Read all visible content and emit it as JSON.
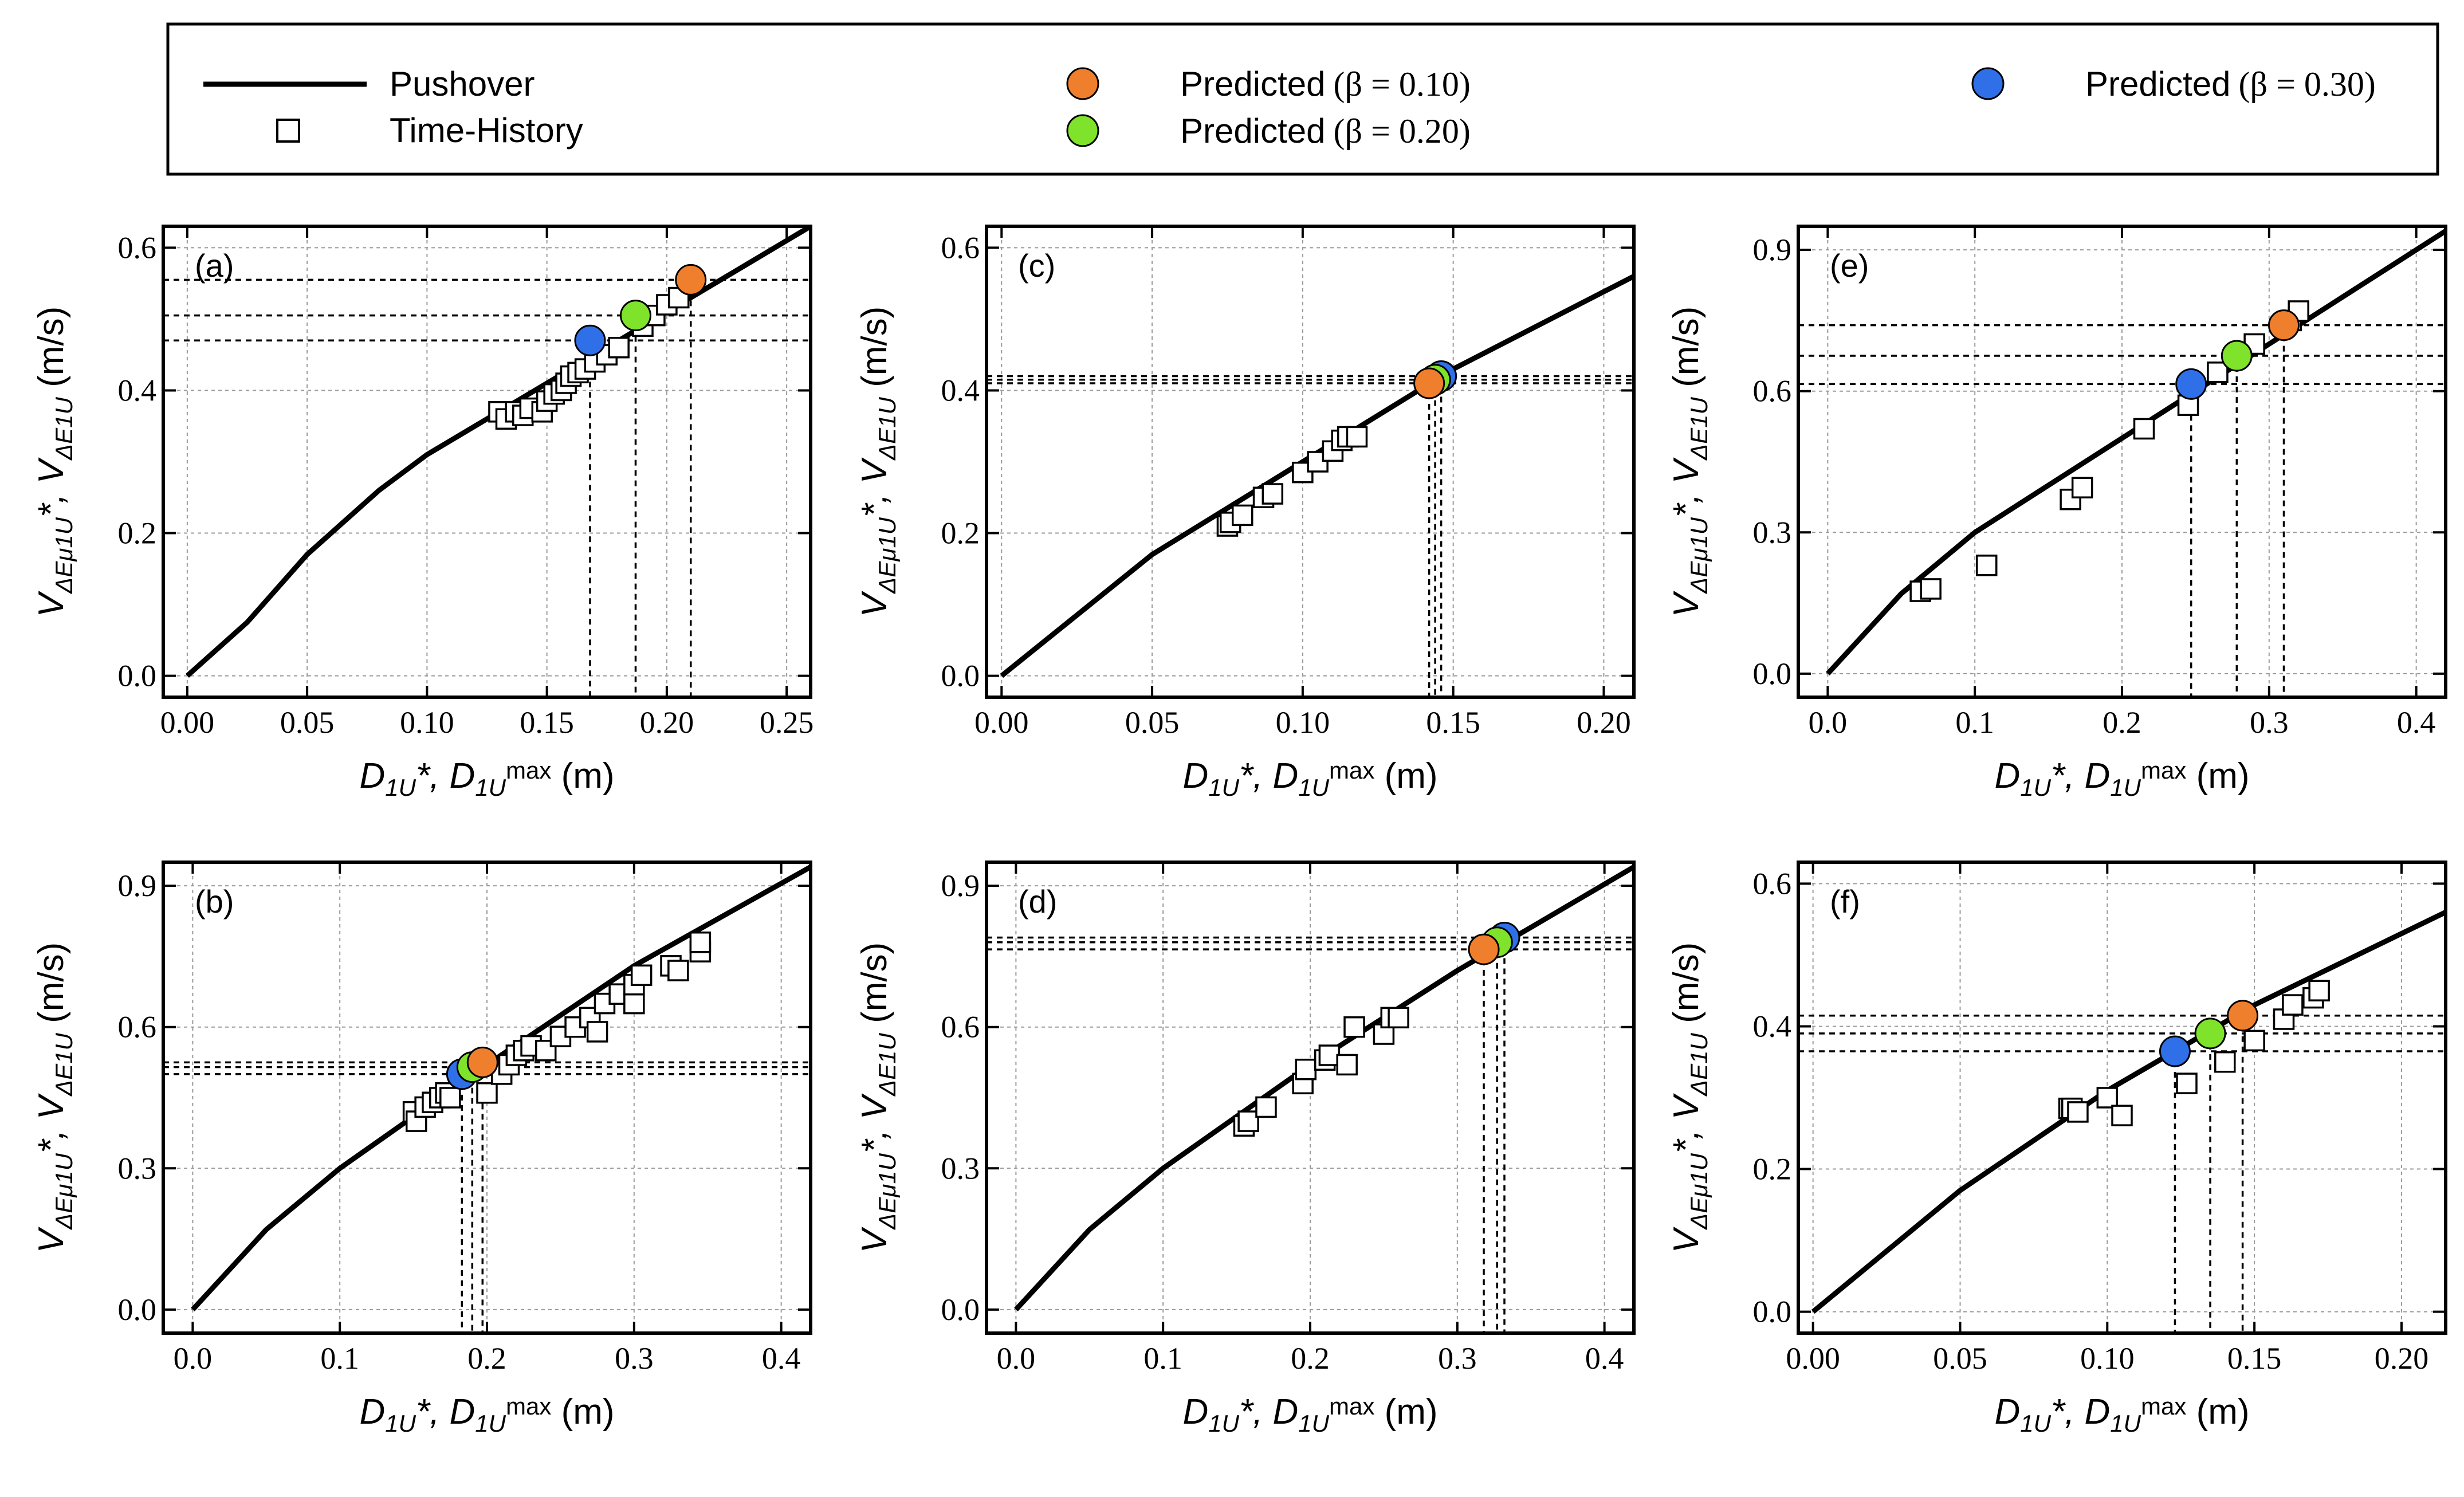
{
  "legend": {
    "pushover_label": "Pushover",
    "time_history_label": "Time-History",
    "predicted_010_text": "Predicted",
    "predicted_010_param": "(β = 0.10)",
    "predicted_020_text": "Predicted",
    "predicted_020_param": "(β = 0.20)",
    "predicted_030_text": "Predicted",
    "predicted_030_param": "(β = 0.30)"
  },
  "colors": {
    "beta_010": "#F07F2D",
    "beta_020": "#7FE22B",
    "beta_030": "#2F6FE8",
    "curve": "#000000",
    "grid": "#9a9a9a"
  },
  "axis_labels": {
    "x_main": "D",
    "x_sub1": "1U",
    "x_sep": "*, D",
    "x_sub2": "1U",
    "x_sub2_max": "max",
    "x_unit": "(m)",
    "y_main": "V",
    "y_sub1": "ΔEμ1U",
    "y_sep": "*, V",
    "y_sub2": "ΔE1U",
    "y_unit": "(m/s)"
  },
  "chart_data": [
    {
      "panel": "(a)",
      "type": "scatter",
      "xlabel": "D1U*, D1U*max (m)",
      "ylabel": "VΔEμ1U*, VΔE1U* (m/s)",
      "xlim": [
        -0.01,
        0.26
      ],
      "ylim": [
        -0.03,
        0.63
      ],
      "xticks": [
        0.0,
        0.05,
        0.1,
        0.15,
        0.2,
        0.25
      ],
      "xticklabels": [
        "0.00",
        "0.05",
        "0.10",
        "0.15",
        "0.20",
        "0.25"
      ],
      "yticks": [
        0.0,
        0.2,
        0.4,
        0.6
      ],
      "yticklabels": [
        "0.0",
        "0.2",
        "0.4",
        "0.6"
      ],
      "pushover": [
        [
          0.0,
          0.0
        ],
        [
          0.025,
          0.075
        ],
        [
          0.05,
          0.17
        ],
        [
          0.08,
          0.26
        ],
        [
          0.1,
          0.31
        ],
        [
          0.15,
          0.41
        ],
        [
          0.2,
          0.51
        ],
        [
          0.26,
          0.63
        ]
      ],
      "time_history": [
        [
          0.13,
          0.37
        ],
        [
          0.133,
          0.36
        ],
        [
          0.137,
          0.37
        ],
        [
          0.14,
          0.365
        ],
        [
          0.143,
          0.375
        ],
        [
          0.148,
          0.37
        ],
        [
          0.15,
          0.385
        ],
        [
          0.153,
          0.395
        ],
        [
          0.156,
          0.4
        ],
        [
          0.158,
          0.41
        ],
        [
          0.16,
          0.42
        ],
        [
          0.163,
          0.425
        ],
        [
          0.166,
          0.43
        ],
        [
          0.17,
          0.44
        ],
        [
          0.175,
          0.45
        ],
        [
          0.18,
          0.46
        ],
        [
          0.19,
          0.49
        ],
        [
          0.195,
          0.505
        ],
        [
          0.2,
          0.52
        ],
        [
          0.205,
          0.53
        ]
      ],
      "predicted": [
        {
          "beta": "0.10",
          "x": 0.21,
          "y": 0.555
        },
        {
          "beta": "0.20",
          "x": 0.187,
          "y": 0.505
        },
        {
          "beta": "0.30",
          "x": 0.168,
          "y": 0.47
        }
      ]
    },
    {
      "panel": "(b)",
      "type": "scatter",
      "xlabel": "D1U*, D1U*max (m)",
      "ylabel": "VΔEμ1U*, VΔE1U* (m/s)",
      "xlim": [
        -0.02,
        0.42
      ],
      "ylim": [
        -0.05,
        0.95
      ],
      "xticks": [
        0.0,
        0.1,
        0.2,
        0.3,
        0.4
      ],
      "xticklabels": [
        "0.0",
        "0.1",
        "0.2",
        "0.3",
        "0.4"
      ],
      "yticks": [
        0.0,
        0.3,
        0.6,
        0.9
      ],
      "yticklabels": [
        "0.0",
        "0.3",
        "0.6",
        "0.9"
      ],
      "pushover": [
        [
          0.0,
          0.0
        ],
        [
          0.05,
          0.17
        ],
        [
          0.1,
          0.3
        ],
        [
          0.2,
          0.52
        ],
        [
          0.3,
          0.73
        ],
        [
          0.42,
          0.94
        ]
      ],
      "time_history": [
        [
          0.15,
          0.42
        ],
        [
          0.152,
          0.4
        ],
        [
          0.158,
          0.43
        ],
        [
          0.163,
          0.44
        ],
        [
          0.168,
          0.45
        ],
        [
          0.172,
          0.46
        ],
        [
          0.175,
          0.45
        ],
        [
          0.2,
          0.46
        ],
        [
          0.21,
          0.5
        ],
        [
          0.215,
          0.52
        ],
        [
          0.22,
          0.54
        ],
        [
          0.225,
          0.55
        ],
        [
          0.23,
          0.56
        ],
        [
          0.24,
          0.55
        ],
        [
          0.25,
          0.58
        ],
        [
          0.26,
          0.6
        ],
        [
          0.27,
          0.62
        ],
        [
          0.275,
          0.59
        ],
        [
          0.28,
          0.65
        ],
        [
          0.29,
          0.67
        ],
        [
          0.3,
          0.65
        ],
        [
          0.3,
          0.69
        ],
        [
          0.305,
          0.71
        ],
        [
          0.325,
          0.73
        ],
        [
          0.33,
          0.72
        ],
        [
          0.345,
          0.76
        ],
        [
          0.345,
          0.78
        ]
      ],
      "predicted": [
        {
          "beta": "0.10",
          "x": 0.197,
          "y": 0.525
        },
        {
          "beta": "0.20",
          "x": 0.19,
          "y": 0.515
        },
        {
          "beta": "0.30",
          "x": 0.183,
          "y": 0.5
        }
      ]
    },
    {
      "panel": "(c)",
      "type": "scatter",
      "xlabel": "D1U*, D1U*max (m)",
      "ylabel": "VΔEμ1U*, VΔE1U* (m/s)",
      "xlim": [
        -0.005,
        0.21
      ],
      "ylim": [
        -0.03,
        0.63
      ],
      "xticks": [
        0.0,
        0.05,
        0.1,
        0.15,
        0.2
      ],
      "xticklabels": [
        "0.00",
        "0.05",
        "0.10",
        "0.15",
        "0.20"
      ],
      "yticks": [
        0.0,
        0.2,
        0.4,
        0.6
      ],
      "yticklabels": [
        "0.0",
        "0.2",
        "0.4",
        "0.6"
      ],
      "pushover": [
        [
          0.0,
          0.0
        ],
        [
          0.05,
          0.17
        ],
        [
          0.1,
          0.3
        ],
        [
          0.15,
          0.43
        ],
        [
          0.21,
          0.56
        ]
      ],
      "time_history": [
        [
          0.075,
          0.21
        ],
        [
          0.076,
          0.215
        ],
        [
          0.08,
          0.225
        ],
        [
          0.087,
          0.25
        ],
        [
          0.09,
          0.255
        ],
        [
          0.1,
          0.285
        ],
        [
          0.105,
          0.3
        ],
        [
          0.11,
          0.315
        ],
        [
          0.113,
          0.33
        ],
        [
          0.115,
          0.335
        ],
        [
          0.118,
          0.335
        ]
      ],
      "predicted": [
        {
          "beta": "0.10",
          "x": 0.142,
          "y": 0.41
        },
        {
          "beta": "0.20",
          "x": 0.144,
          "y": 0.415
        },
        {
          "beta": "0.30",
          "x": 0.146,
          "y": 0.42
        }
      ]
    },
    {
      "panel": "(d)",
      "type": "scatter",
      "xlabel": "D1U*, D1U*max (m)",
      "ylabel": "VΔEμ1U*, VΔE1U* (m/s)",
      "xlim": [
        -0.02,
        0.42
      ],
      "ylim": [
        -0.05,
        0.95
      ],
      "xticks": [
        0.0,
        0.1,
        0.2,
        0.3,
        0.4
      ],
      "xticklabels": [
        "0.0",
        "0.1",
        "0.2",
        "0.3",
        "0.4"
      ],
      "yticks": [
        0.0,
        0.3,
        0.6,
        0.9
      ],
      "yticklabels": [
        "0.0",
        "0.3",
        "0.6",
        "0.9"
      ],
      "pushover": [
        [
          0.0,
          0.0
        ],
        [
          0.05,
          0.17
        ],
        [
          0.1,
          0.3
        ],
        [
          0.2,
          0.52
        ],
        [
          0.3,
          0.72
        ],
        [
          0.42,
          0.94
        ]
      ],
      "time_history": [
        [
          0.155,
          0.39
        ],
        [
          0.158,
          0.4
        ],
        [
          0.17,
          0.43
        ],
        [
          0.195,
          0.48
        ],
        [
          0.197,
          0.51
        ],
        [
          0.21,
          0.53
        ],
        [
          0.213,
          0.54
        ],
        [
          0.225,
          0.52
        ],
        [
          0.23,
          0.6
        ],
        [
          0.25,
          0.585
        ],
        [
          0.255,
          0.62
        ],
        [
          0.26,
          0.62
        ]
      ],
      "predicted": [
        {
          "beta": "0.10",
          "x": 0.318,
          "y": 0.765
        },
        {
          "beta": "0.20",
          "x": 0.327,
          "y": 0.78
        },
        {
          "beta": "0.30",
          "x": 0.332,
          "y": 0.79
        }
      ]
    },
    {
      "panel": "(e)",
      "type": "scatter",
      "xlabel": "D1U*, D1U*max (m)",
      "ylabel": "VΔEμ1U*, VΔE1U* (m/s)",
      "xlim": [
        -0.02,
        0.42
      ],
      "ylim": [
        -0.05,
        0.95
      ],
      "xticks": [
        0.0,
        0.1,
        0.2,
        0.3,
        0.4
      ],
      "xticklabels": [
        "0.0",
        "0.1",
        "0.2",
        "0.3",
        "0.4"
      ],
      "yticks": [
        0.0,
        0.3,
        0.6,
        0.9
      ],
      "yticklabels": [
        "0.0",
        "0.3",
        "0.6",
        "0.9"
      ],
      "pushover": [
        [
          0.0,
          0.0
        ],
        [
          0.05,
          0.17
        ],
        [
          0.1,
          0.3
        ],
        [
          0.2,
          0.5
        ],
        [
          0.3,
          0.7
        ],
        [
          0.42,
          0.94
        ]
      ],
      "time_history": [
        [
          0.063,
          0.175
        ],
        [
          0.07,
          0.18
        ],
        [
          0.108,
          0.23
        ],
        [
          0.165,
          0.37
        ],
        [
          0.173,
          0.395
        ],
        [
          0.215,
          0.52
        ],
        [
          0.245,
          0.57
        ],
        [
          0.265,
          0.64
        ],
        [
          0.29,
          0.7
        ],
        [
          0.315,
          0.75
        ],
        [
          0.32,
          0.77
        ]
      ],
      "predicted": [
        {
          "beta": "0.10",
          "x": 0.31,
          "y": 0.74
        },
        {
          "beta": "0.20",
          "x": 0.278,
          "y": 0.675
        },
        {
          "beta": "0.30",
          "x": 0.247,
          "y": 0.615
        }
      ]
    },
    {
      "panel": "(f)",
      "type": "scatter",
      "xlabel": "D1U*, D1U*max (m)",
      "ylabel": "VΔEμ1U*, VΔE1U* (m/s)",
      "xlim": [
        -0.005,
        0.215
      ],
      "ylim": [
        -0.03,
        0.63
      ],
      "xticks": [
        0.0,
        0.05,
        0.1,
        0.15,
        0.2
      ],
      "xticklabels": [
        "0.00",
        "0.05",
        "0.10",
        "0.15",
        "0.20"
      ],
      "yticks": [
        0.0,
        0.2,
        0.4,
        0.6
      ],
      "yticklabels": [
        "0.0",
        "0.2",
        "0.4",
        "0.6"
      ],
      "pushover": [
        [
          0.0,
          0.0
        ],
        [
          0.05,
          0.17
        ],
        [
          0.1,
          0.31
        ],
        [
          0.15,
          0.43
        ],
        [
          0.215,
          0.56
        ]
      ],
      "time_history": [
        [
          0.087,
          0.285
        ],
        [
          0.088,
          0.285
        ],
        [
          0.09,
          0.28
        ],
        [
          0.1,
          0.3
        ],
        [
          0.105,
          0.275
        ],
        [
          0.127,
          0.32
        ],
        [
          0.14,
          0.35
        ],
        [
          0.15,
          0.38
        ],
        [
          0.16,
          0.41
        ],
        [
          0.163,
          0.43
        ],
        [
          0.17,
          0.44
        ],
        [
          0.172,
          0.45
        ]
      ],
      "predicted": [
        {
          "beta": "0.10",
          "x": 0.146,
          "y": 0.415
        },
        {
          "beta": "0.20",
          "x": 0.135,
          "y": 0.39
        },
        {
          "beta": "0.30",
          "x": 0.123,
          "y": 0.365
        }
      ]
    }
  ]
}
